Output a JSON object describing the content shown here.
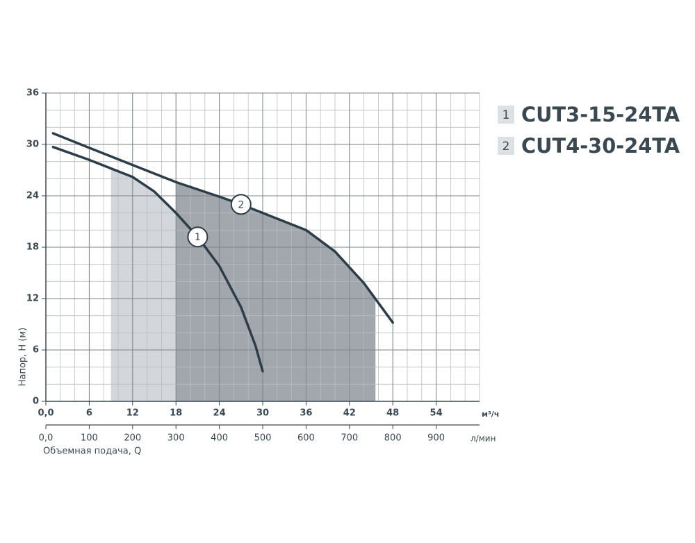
{
  "chart_data": {
    "type": "line",
    "y_label": "Напор, H (м)",
    "x_label": "Объемная подача, Q",
    "x_unit": "м³/ч",
    "x2_unit": "л/мин",
    "xlim": [
      0,
      60
    ],
    "xticks": [
      {
        "value": 0,
        "label": "0,0"
      },
      6,
      12,
      18,
      24,
      30,
      36,
      42,
      48,
      54
    ],
    "x2lim": [
      0,
      1000
    ],
    "x2ticks": [
      {
        "value": 0,
        "label": "0,0"
      },
      100,
      200,
      300,
      400,
      500,
      600,
      700,
      800,
      900
    ],
    "ylim": [
      0,
      36
    ],
    "yticks": [
      0,
      6,
      12,
      18,
      24,
      30,
      36
    ],
    "minor_step": 2,
    "grid": true,
    "series": [
      {
        "name": "CUT3-15-24TA",
        "label": "1",
        "color": "#2d3d47",
        "range_color": "#d3d7db",
        "x": [
          1,
          6,
          12,
          15,
          18,
          21,
          24,
          27,
          29,
          30
        ],
        "y": [
          29.7,
          28.2,
          26.2,
          24.5,
          22,
          19.2,
          15.8,
          11,
          6.5,
          3.5
        ],
        "work_range": [
          9,
          27
        ]
      },
      {
        "name": "CUT4-30-24TA",
        "label": "2",
        "color": "#2d3d47",
        "range_color": "#a2a7ad",
        "x": [
          1,
          6,
          12,
          18,
          24,
          27,
          30,
          36,
          40,
          44,
          48
        ],
        "y": [
          31.3,
          29.6,
          27.6,
          25.6,
          23.9,
          23,
          22,
          20,
          17.5,
          13.8,
          9.2
        ],
        "work_range": [
          18,
          45.6
        ]
      }
    ]
  }
}
